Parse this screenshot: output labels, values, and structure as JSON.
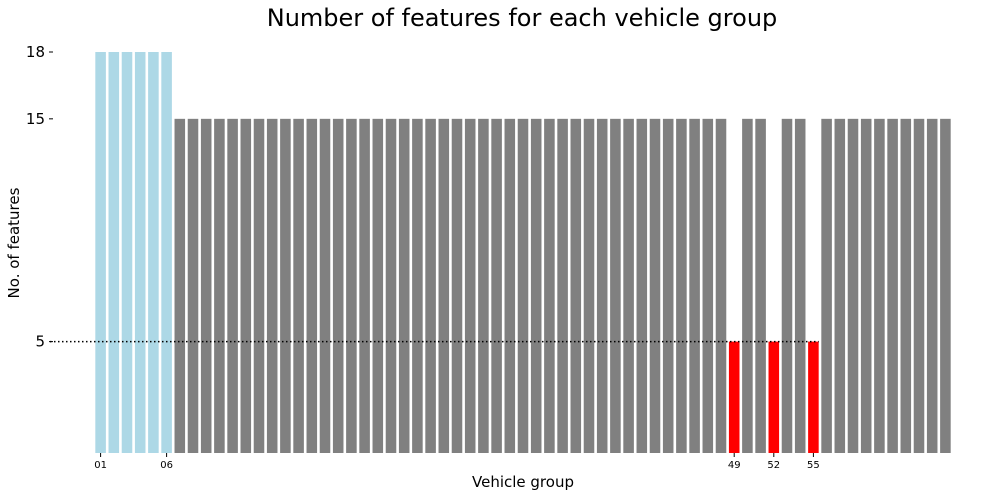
{
  "chart_data": {
    "type": "bar",
    "title": "Number of features for each vehicle group",
    "xlabel": "Vehicle group",
    "ylabel": "No. of features",
    "ylim": [
      0,
      18
    ],
    "yticks": [
      5,
      15,
      18
    ],
    "xtick_labels": [
      {
        "index": 0,
        "label": "01"
      },
      {
        "index": 5,
        "label": "06"
      },
      {
        "index": 48,
        "label": "49"
      },
      {
        "index": 51,
        "label": "52"
      },
      {
        "index": 54,
        "label": "55"
      }
    ],
    "reference_line": {
      "y": 5,
      "style": "dotted",
      "color": "#000000"
    },
    "colors": {
      "high": "#add8e6",
      "normal": "#808080",
      "low": "#ff0000"
    },
    "values": [
      18,
      18,
      18,
      18,
      18,
      18,
      15,
      15,
      15,
      15,
      15,
      15,
      15,
      15,
      15,
      15,
      15,
      15,
      15,
      15,
      15,
      15,
      15,
      15,
      15,
      15,
      15,
      15,
      15,
      15,
      15,
      15,
      15,
      15,
      15,
      15,
      15,
      15,
      15,
      15,
      15,
      15,
      15,
      15,
      15,
      15,
      15,
      15,
      5,
      15,
      15,
      5,
      15,
      15,
      5,
      15,
      15,
      15,
      15,
      15,
      15,
      15,
      15,
      15,
      15
    ],
    "bar_colors": [
      "high",
      "high",
      "high",
      "high",
      "high",
      "high",
      "normal",
      "normal",
      "normal",
      "normal",
      "normal",
      "normal",
      "normal",
      "normal",
      "normal",
      "normal",
      "normal",
      "normal",
      "normal",
      "normal",
      "normal",
      "normal",
      "normal",
      "normal",
      "normal",
      "normal",
      "normal",
      "normal",
      "normal",
      "normal",
      "normal",
      "normal",
      "normal",
      "normal",
      "normal",
      "normal",
      "normal",
      "normal",
      "normal",
      "normal",
      "normal",
      "normal",
      "normal",
      "normal",
      "normal",
      "normal",
      "normal",
      "normal",
      "low",
      "normal",
      "normal",
      "low",
      "normal",
      "normal",
      "low",
      "normal",
      "normal",
      "normal",
      "normal",
      "normal",
      "normal",
      "normal",
      "normal",
      "normal",
      "normal"
    ],
    "grid": false,
    "legend": "none"
  }
}
